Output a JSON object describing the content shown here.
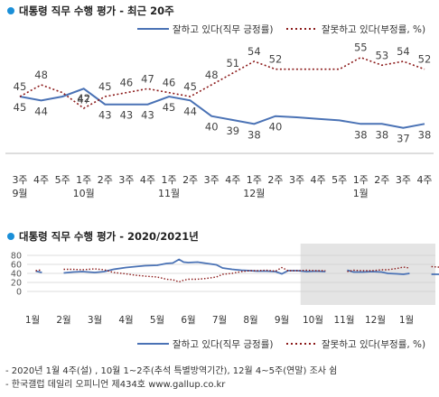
{
  "chart_data": [
    {
      "type": "line",
      "title": "대통령 직무 수행 평가 - 최근 20주",
      "categories": [
        "3주",
        "4주",
        "5주",
        "1주",
        "2주",
        "3주",
        "4주",
        "1주",
        "2주",
        "3주",
        "4주",
        "1주",
        "2주",
        "3주",
        "4주",
        "5주",
        "1주",
        "2주",
        "3주",
        "4주"
      ],
      "month_labels": [
        {
          "index": 0,
          "label": "9월"
        },
        {
          "index": 3,
          "label": "10월"
        },
        {
          "index": 7,
          "label": "11월"
        },
        {
          "index": 11,
          "label": "12월"
        },
        {
          "index": 16,
          "label": "1월"
        }
      ],
      "ylim": [
        30,
        60
      ],
      "series": [
        {
          "name": "잘하고 있다(직무 긍정률)",
          "color": "#4a72b5",
          "style": "solid",
          "values": [
            45,
            44,
            null,
            47,
            43,
            43,
            43,
            45,
            44,
            40,
            39,
            38,
            40,
            null,
            null,
            null,
            38,
            38,
            37,
            38
          ]
        },
        {
          "name": "잘못하고 있다(부정률, %)",
          "color": "#8b1a1a",
          "style": "dotted",
          "values": [
            45,
            48,
            null,
            42,
            45,
            46,
            47,
            46,
            45,
            48,
            51,
            54,
            52,
            null,
            null,
            null,
            55,
            53,
            54,
            52
          ]
        }
      ],
      "series_line": [
        {
          "values": [
            45,
            44,
            45,
            47,
            43,
            43,
            43,
            45,
            44,
            40,
            39,
            38,
            40,
            39.7,
            39.3,
            38.9,
            38,
            38,
            37,
            38
          ]
        },
        {
          "values": [
            45,
            48,
            46,
            42,
            45,
            46,
            47,
            46,
            45,
            48,
            51,
            54,
            52,
            52,
            52,
            52,
            55,
            53,
            54,
            52
          ]
        }
      ]
    },
    {
      "type": "line",
      "title": "대통령 직무 수행 평가 - 2020/2021년",
      "months": [
        "1월",
        "2월",
        "3월",
        "4월",
        "5월",
        "6월",
        "7월",
        "8월",
        "9월",
        "10월",
        "11월",
        "12월",
        "1월"
      ],
      "yticks": [
        0,
        20,
        40,
        60,
        80
      ],
      "ylim": [
        0,
        80
      ],
      "shaded_from_month_index": 8.6,
      "series": [
        {
          "name": "잘하고 있다(직무 긍정률)",
          "color": "#4a72b5",
          "style": "solid",
          "segments": [
            [
              [
                0.1,
                45
              ],
              [
                0.3,
                42
              ]
            ],
            [
              [
                1.0,
                41
              ],
              [
                1.3,
                43
              ],
              [
                1.6,
                44
              ],
              [
                2.0,
                42
              ],
              [
                2.3,
                44
              ],
              [
                2.6,
                49
              ],
              [
                3.0,
                53
              ],
              [
                3.3,
                55
              ],
              [
                3.6,
                57
              ],
              [
                4.0,
                58
              ],
              [
                4.3,
                62
              ],
              [
                4.5,
                63
              ],
              [
                4.7,
                71
              ],
              [
                4.85,
                65
              ],
              [
                5.0,
                64
              ],
              [
                5.3,
                65
              ],
              [
                5.6,
                62
              ],
              [
                5.9,
                59
              ],
              [
                6.1,
                52
              ],
              [
                6.4,
                49
              ],
              [
                6.7,
                47
              ],
              [
                7.0,
                46
              ],
              [
                7.2,
                45
              ],
              [
                7.5,
                45
              ],
              [
                7.8,
                44
              ],
              [
                8.0,
                39
              ],
              [
                8.2,
                46
              ],
              [
                8.5,
                46
              ],
              [
                8.8,
                44
              ],
              [
                9.1,
                45
              ],
              [
                9.4,
                44
              ]
            ],
            [
              [
                10.1,
                47
              ],
              [
                10.3,
                43
              ],
              [
                10.6,
                43
              ],
              [
                10.9,
                44
              ],
              [
                11.2,
                43
              ],
              [
                11.4,
                40
              ],
              [
                11.7,
                39
              ],
              [
                11.9,
                38
              ],
              [
                12.1,
                40
              ]
            ],
            [
              [
                12.8,
                38
              ],
              [
                13.7,
                38
              ]
            ]
          ]
        },
        {
          "name": "잘못하고 있다(부정률, %)",
          "color": "#8b1a1a",
          "style": "dotted",
          "segments": [
            [
              [
                0.1,
                46
              ],
              [
                0.3,
                48
              ]
            ],
            [
              [
                1.0,
                49
              ],
              [
                1.3,
                49
              ],
              [
                1.6,
                48
              ],
              [
                2.0,
                50
              ],
              [
                2.3,
                48
              ],
              [
                2.6,
                42
              ],
              [
                3.0,
                39
              ],
              [
                3.3,
                36
              ],
              [
                3.6,
                34
              ],
              [
                4.0,
                32
              ],
              [
                4.3,
                27
              ],
              [
                4.5,
                26
              ],
              [
                4.7,
                21
              ],
              [
                4.85,
                25
              ],
              [
                5.0,
                27
              ],
              [
                5.3,
                27
              ],
              [
                5.6,
                29
              ],
              [
                5.9,
                32
              ],
              [
                6.1,
                38
              ],
              [
                6.4,
                40
              ],
              [
                6.7,
                44
              ],
              [
                7.0,
                46
              ],
              [
                7.2,
                46
              ],
              [
                7.5,
                47
              ],
              [
                7.8,
                45
              ],
              [
                8.0,
                53
              ],
              [
                8.2,
                46
              ],
              [
                8.5,
                46
              ],
              [
                8.8,
                47
              ],
              [
                9.1,
                46
              ],
              [
                9.4,
                46
              ]
            ],
            [
              [
                10.1,
                44
              ],
              [
                10.3,
                47
              ],
              [
                10.6,
                46
              ],
              [
                10.9,
                46
              ],
              [
                11.2,
                48
              ],
              [
                11.4,
                48
              ],
              [
                11.7,
                51
              ],
              [
                11.9,
                54
              ],
              [
                12.1,
                52
              ]
            ],
            [
              [
                12.8,
                55
              ],
              [
                13.2,
                53
              ],
              [
                13.5,
                54
              ],
              [
                13.7,
                52
              ]
            ]
          ]
        }
      ]
    }
  ],
  "footnotes": [
    "- 2020년 1월 4주(설) , 10월 1~2주(추석 특별방역기간), 12월 4~5주(연말) 조사 쉼",
    "- 한국갤럽 데일리 오피니언 제434호 www.gallup.co.kr"
  ]
}
